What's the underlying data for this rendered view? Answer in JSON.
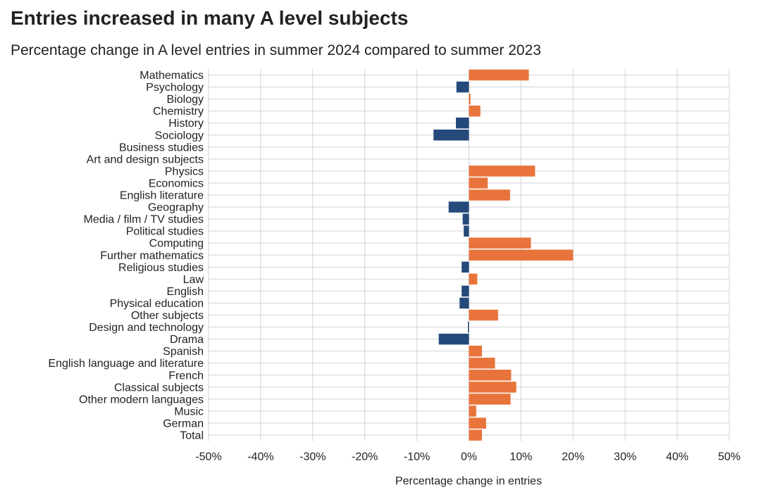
{
  "chart_data": {
    "type": "bar",
    "orientation": "horizontal",
    "title": "Entries increased in many A level subjects",
    "subtitle": "Percentage change in A level entries in summer 2024 compared to summer 2023",
    "xlabel": "Percentage change in entries",
    "ylabel": "",
    "xlim": [
      -50,
      50
    ],
    "x_ticks": [
      -50,
      -40,
      -30,
      -20,
      -10,
      0,
      10,
      20,
      30,
      40,
      50
    ],
    "x_tick_labels": [
      "-50%",
      "-40%",
      "-30%",
      "-20%",
      "-10%",
      "0%",
      "10%",
      "20%",
      "30%",
      "40%",
      "50%"
    ],
    "grid": true,
    "colors": {
      "increase": "#e8743b",
      "decrease": "#234a7a",
      "grid": "#d3d3d3"
    },
    "categories": [
      "Mathematics",
      "Psychology",
      "Biology",
      "Chemistry",
      "History",
      "Sociology",
      "Business studies",
      "Art and design subjects",
      "Physics",
      "Economics",
      "English literature",
      "Geography",
      "Media / film / TV studies",
      "Political studies",
      "Computing",
      "Further mathematics",
      "Religious studies",
      "Law",
      "English",
      "Physical education",
      "Other subjects",
      "Design and technology",
      "Drama",
      "Spanish",
      "English language and literature",
      "French",
      "Classical subjects",
      "Other modern languages",
      "Music",
      "German",
      "Total"
    ],
    "values": [
      11.5,
      -2.4,
      0.3,
      2.2,
      -2.5,
      -6.8,
      0,
      0,
      12.7,
      3.6,
      7.9,
      -3.9,
      -1.2,
      -1.0,
      11.9,
      20.0,
      -1.4,
      1.6,
      -1.4,
      -1.8,
      5.6,
      -0.2,
      -5.8,
      2.5,
      5.0,
      8.1,
      9.1,
      8.0,
      1.4,
      3.3,
      2.5
    ]
  }
}
